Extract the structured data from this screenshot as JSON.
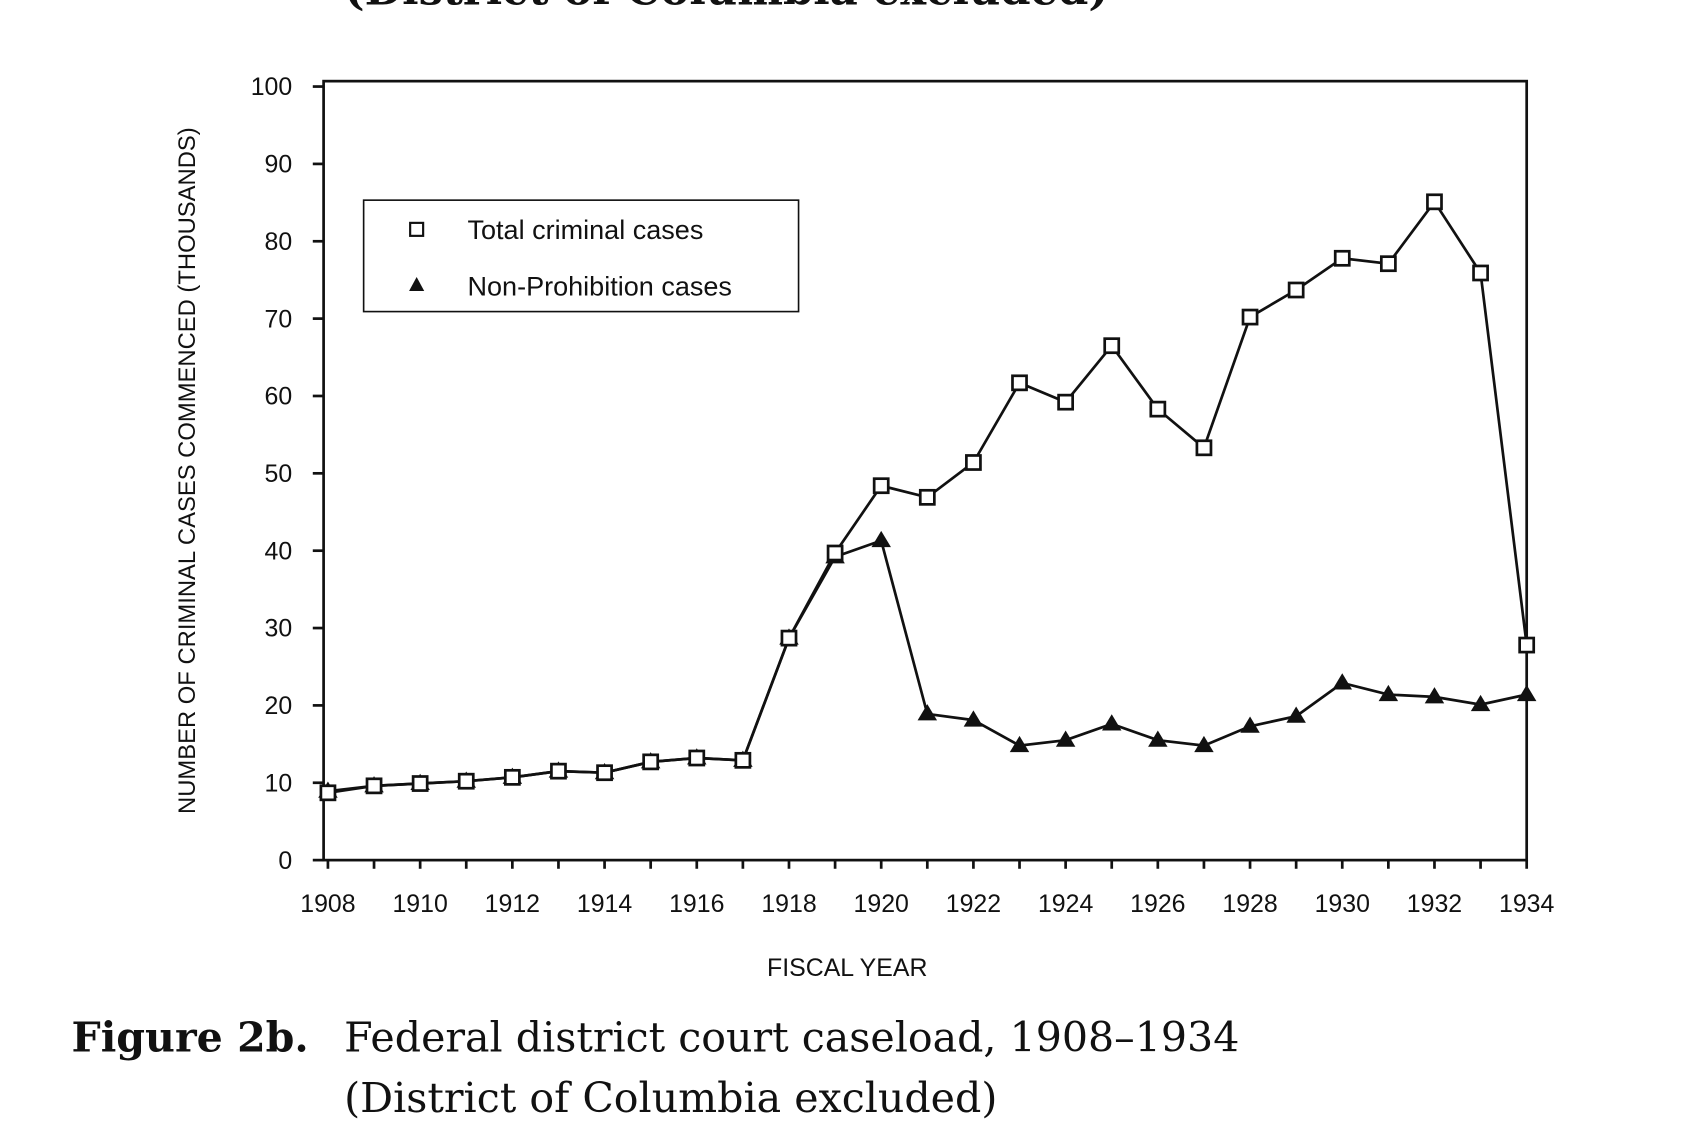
{
  "top_fragment": "(District of Columbia excluded)",
  "caption": {
    "label": "Figure 2b.",
    "line1": "Federal district court caseload, 1908–1934",
    "line2": "(District of Columbia excluded)"
  },
  "chart_data": {
    "type": "line",
    "title": "",
    "xlabel": "FISCAL YEAR",
    "ylabel": "NUMBER OF CRIMINAL CASES COMMENCED (THOUSANDS)",
    "xlim": [
      1908,
      1934
    ],
    "ylim": [
      0,
      100
    ],
    "xticks": [
      "1908",
      "1910",
      "1912",
      "1914",
      "1916",
      "1918",
      "1920",
      "1922",
      "1924",
      "1926",
      "1928",
      "1930",
      "1932",
      "1934"
    ],
    "yticks": [
      "0",
      "10",
      "20",
      "30",
      "40",
      "50",
      "60",
      "70",
      "80",
      "90",
      "100"
    ],
    "grid": false,
    "legend_position": "top-left",
    "x": [
      1908,
      1909,
      1910,
      1911,
      1912,
      1913,
      1914,
      1915,
      1916,
      1917,
      1918,
      1919,
      1920,
      1921,
      1922,
      1923,
      1924,
      1925,
      1926,
      1927,
      1928,
      1929,
      1930,
      1931,
      1932,
      1933,
      1934
    ],
    "series": [
      {
        "name": "Total criminal cases",
        "marker": "open-square",
        "values": [
          8.7,
          9.6,
          9.9,
          10.2,
          10.7,
          11.5,
          11.3,
          12.7,
          13.2,
          12.9,
          28.7,
          39.7,
          48.4,
          46.9,
          51.4,
          61.7,
          59.2,
          66.5,
          58.3,
          53.3,
          70.2,
          73.7,
          77.8,
          77.1,
          85.1,
          75.9,
          27.8
        ]
      },
      {
        "name": "Non-Prohibition cases",
        "marker": "filled-triangle",
        "values": [
          8.9,
          9.6,
          9.9,
          10.2,
          10.7,
          11.5,
          11.3,
          12.7,
          13.2,
          12.9,
          28.7,
          39.2,
          41.3,
          18.9,
          18.1,
          14.8,
          15.5,
          17.6,
          15.5,
          14.8,
          17.3,
          18.6,
          22.9,
          21.4,
          21.1,
          20.1,
          21.4
        ]
      }
    ]
  }
}
